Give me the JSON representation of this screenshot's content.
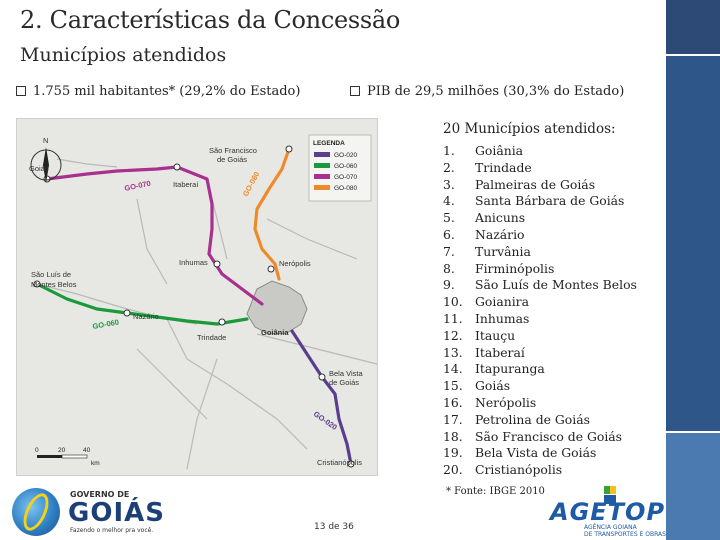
{
  "slide": {
    "title": "2. Características da Concessão",
    "subtitle": "Municípios atendidos",
    "page_number": "13 de 36"
  },
  "bullets": [
    {
      "text": "1.755 mil habitantes* (29,2% do Estado)"
    },
    {
      "text": "PIB de 29,5 milhões (30,3% do Estado)"
    }
  ],
  "municipalities": {
    "heading": "20 Municípios atendidos:",
    "items": [
      {
        "num": "1.",
        "name": "Goiânia"
      },
      {
        "num": "2.",
        "name": "Trindade"
      },
      {
        "num": "3.",
        "name": "Palmeiras de Goiás"
      },
      {
        "num": "4.",
        "name": "Santa Bárbara de Goiás"
      },
      {
        "num": "5.",
        "name": "Anicuns"
      },
      {
        "num": "6.",
        "name": "Nazário"
      },
      {
        "num": "7.",
        "name": "Turvânia"
      },
      {
        "num": "8.",
        "name": "Firminópolis"
      },
      {
        "num": "9.",
        "name": "São Luís de Montes Belos"
      },
      {
        "num": "10.",
        "name": "Goianira"
      },
      {
        "num": "11.",
        "name": "Inhumas"
      },
      {
        "num": "12.",
        "name": "Itauçu"
      },
      {
        "num": "13.",
        "name": "Itaberaí"
      },
      {
        "num": "14.",
        "name": "Itapuranga"
      },
      {
        "num": "15.",
        "name": "Goiás"
      },
      {
        "num": "16.",
        "name": "Nerópolis"
      },
      {
        "num": "17.",
        "name": "Petrolina de Goiás"
      },
      {
        "num": "18.",
        "name": "São Francisco de Goiás"
      },
      {
        "num": "19.",
        "name": "Bela Vista de Goiás"
      },
      {
        "num": "20.",
        "name": "Cristianópolis"
      }
    ],
    "footnote": "* Fonte: IBGE 2010"
  },
  "map": {
    "north": "N",
    "legend_title": "LEGENDA",
    "legend": [
      {
        "label": "GO-020",
        "color": "#5a3d8f"
      },
      {
        "label": "GO-060",
        "color": "#1a9a3a"
      },
      {
        "label": "GO-070",
        "color": "#a8308e"
      },
      {
        "label": "GO-080",
        "color": "#ee8a2a"
      }
    ],
    "towns": {
      "goias": "Goiás",
      "itaberai": "Itaberaí",
      "sao_francisco_1": "São Francisco",
      "sao_francisco_2": "de Goiás",
      "inhumas": "Inhumas",
      "neropolis": "Nerópolis",
      "sao_luis_1": "São Luís de",
      "sao_luis_2": "Montes Belos",
      "nazario": "Nazário",
      "trindade": "Trindade",
      "goiania": "Goiânia",
      "bela_vista_1": "Bela Vista",
      "bela_vista_2": "de Goiás",
      "cristianopolis": "Cristianópolis"
    },
    "road_labels": {
      "go070": "GO-070",
      "go080": "GO-080",
      "go060": "GO-060",
      "go020": "GO-020"
    },
    "scale": {
      "zero": "0",
      "mid": "20",
      "max": "40",
      "unit": "km"
    }
  },
  "logos": {
    "gov_small": "GOVERNO DE",
    "gov_big": "GOIÁS",
    "gov_tag": "Fazendo o melhor pra você.",
    "agetop_word": "AGETOP",
    "agetop_sub1": "AGÊNCIA GOIANA",
    "agetop_sub2": "DE TRANSPORTES E OBRAS"
  }
}
